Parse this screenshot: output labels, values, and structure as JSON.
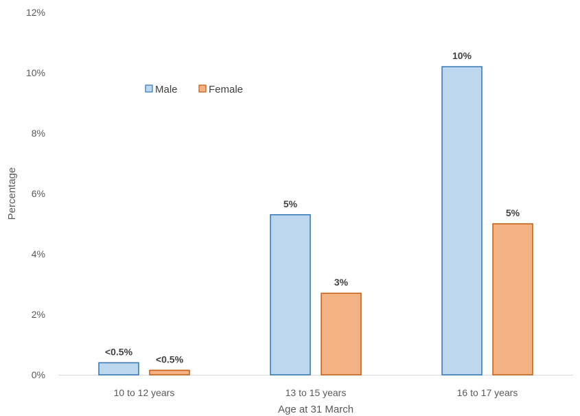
{
  "chart_data": {
    "type": "bar",
    "title": "",
    "xlabel": "Age at 31 March",
    "ylabel": "Percentage",
    "categories": [
      "10 to 12 years",
      "13 to 15 years",
      "16 to 17 years"
    ],
    "series": [
      {
        "name": "Male",
        "values": [
          0.4,
          5.3,
          10.2
        ],
        "labels": [
          "<0.5%",
          "5%",
          "10%"
        ],
        "fill": "#BDD7EE",
        "stroke": "#2E75B6"
      },
      {
        "name": "Female",
        "values": [
          0.15,
          2.7,
          5.0
        ],
        "labels": [
          "<0.5%",
          "3%",
          "5%"
        ],
        "fill": "#F4B183",
        "stroke": "#C55A11"
      }
    ],
    "ylim": [
      0,
      12
    ],
    "yticks": [
      0,
      2,
      4,
      6,
      8,
      10,
      12
    ],
    "ytick_labels": [
      "0%",
      "2%",
      "4%",
      "6%",
      "8%",
      "10%",
      "12%"
    ],
    "grid": false,
    "legend_position": "top-left"
  }
}
